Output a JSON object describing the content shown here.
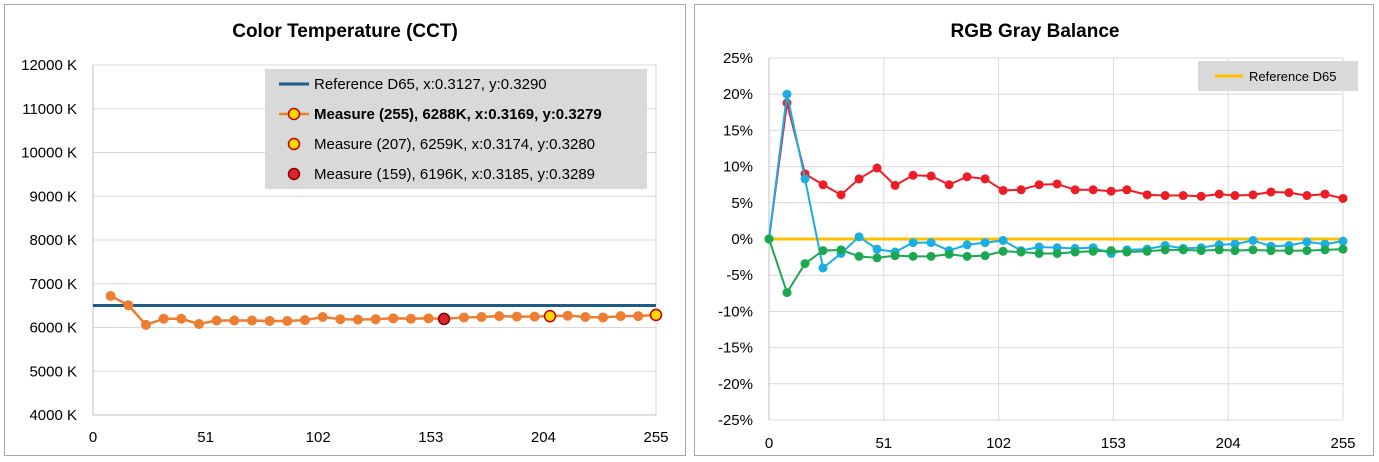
{
  "chart_data": [
    {
      "type": "line",
      "title": "Color Temperature (CCT)",
      "xlim": [
        0,
        255
      ],
      "ylim": [
        4000,
        12000
      ],
      "x_ticks": [
        0,
        51,
        102,
        153,
        204,
        255
      ],
      "y_ticks": [
        "4000 K",
        "5000 K",
        "6000 K",
        "7000 K",
        "8000 K",
        "9000 K",
        "10000 K",
        "11000 K",
        "12000 K"
      ],
      "y_tick_values": [
        4000,
        5000,
        6000,
        7000,
        8000,
        9000,
        10000,
        11000,
        12000
      ],
      "grid": true,
      "legend_position": "top-right",
      "legend": [
        "Reference D65, x:0.3127, y:0.3290",
        "Measure (255), 6288K, x:0.3169, y:0.3279",
        "Measure (207), 6259K, x:0.3174, y:0.3280",
        "Measure (159), 6196K, x:0.3185, y:0.3289"
      ],
      "reference": {
        "name": "Reference D65",
        "value": 6504,
        "color": "#1f5c85"
      },
      "series": [
        {
          "name": "Measure",
          "color": "#ed7d31",
          "x": [
            8,
            16,
            24,
            32,
            40,
            48,
            56,
            64,
            72,
            80,
            88,
            96,
            104,
            112,
            120,
            128,
            136,
            144,
            152,
            159,
            168,
            176,
            184,
            192,
            200,
            207,
            215,
            223,
            231,
            239,
            247,
            255
          ],
          "values": [
            6720,
            6510,
            6060,
            6200,
            6200,
            6080,
            6160,
            6160,
            6160,
            6150,
            6150,
            6170,
            6240,
            6190,
            6180,
            6190,
            6210,
            6200,
            6210,
            6196,
            6230,
            6240,
            6260,
            6250,
            6250,
            6259,
            6270,
            6240,
            6230,
            6260,
            6260,
            6288
          ]
        }
      ],
      "highlights": [
        {
          "x": 255,
          "y": 6288,
          "fill": "#ffd800",
          "stroke": "#c00000"
        },
        {
          "x": 207,
          "y": 6259,
          "fill": "#ffd800",
          "stroke": "#c00000"
        },
        {
          "x": 159,
          "y": 6196,
          "fill": "#d9262c",
          "stroke": "#8b0000"
        }
      ]
    },
    {
      "type": "line",
      "title": "RGB Gray Balance",
      "xlim": [
        0,
        255
      ],
      "ylim": [
        -25,
        25
      ],
      "x_ticks": [
        0,
        51,
        102,
        153,
        204,
        255
      ],
      "y_ticks": [
        "-25%",
        "-20%",
        "-15%",
        "-10%",
        "-5%",
        "0%",
        "5%",
        "10%",
        "15%",
        "20%",
        "25%"
      ],
      "y_tick_values": [
        -25,
        -20,
        -15,
        -10,
        -5,
        0,
        5,
        10,
        15,
        20,
        25
      ],
      "grid": true,
      "legend_position": "top-right",
      "legend": [
        "Reference D65"
      ],
      "reference": {
        "name": "Reference D65",
        "value": 0,
        "color": "#ffc000"
      },
      "x": [
        0,
        8,
        16,
        24,
        32,
        40,
        48,
        56,
        64,
        72,
        80,
        88,
        96,
        104,
        112,
        120,
        128,
        136,
        144,
        152,
        159,
        168,
        176,
        184,
        192,
        200,
        207,
        215,
        223,
        231,
        239,
        247,
        255
      ],
      "series": [
        {
          "color": "#ee1c25",
          "values": [
            0,
            18.8,
            9,
            7.5,
            6.1,
            8.3,
            9.8,
            7.4,
            8.8,
            8.7,
            7.5,
            8.6,
            8.3,
            6.7,
            6.8,
            7.5,
            7.6,
            6.8,
            6.8,
            6.6,
            6.8,
            6.1,
            6,
            6,
            5.9,
            6.2,
            6,
            6.1,
            6.5,
            6.4,
            6,
            6.2,
            5.6
          ]
        },
        {
          "color": "#1aaee4",
          "values": [
            0,
            20,
            8.3,
            -4,
            -2,
            0.3,
            -1.4,
            -1.8,
            -0.5,
            -0.5,
            -1.6,
            -0.8,
            -0.5,
            -0.2,
            -1.6,
            -1.1,
            -1.2,
            -1.3,
            -1.2,
            -2,
            -1.5,
            -1.4,
            -0.9,
            -1.3,
            -1.2,
            -0.8,
            -0.7,
            -0.2,
            -1,
            -0.9,
            -0.4,
            -0.7,
            -0.3
          ]
        },
        {
          "color": "#1ca850",
          "values": [
            0,
            -7.4,
            -3.4,
            -1.6,
            -1.5,
            -2.4,
            -2.6,
            -2.3,
            -2.4,
            -2.4,
            -2.1,
            -2.4,
            -2.3,
            -1.7,
            -1.8,
            -2,
            -2,
            -1.8,
            -1.7,
            -1.6,
            -1.8,
            -1.7,
            -1.5,
            -1.5,
            -1.6,
            -1.5,
            -1.6,
            -1.5,
            -1.6,
            -1.6,
            -1.6,
            -1.5,
            -1.4
          ]
        }
      ]
    }
  ]
}
